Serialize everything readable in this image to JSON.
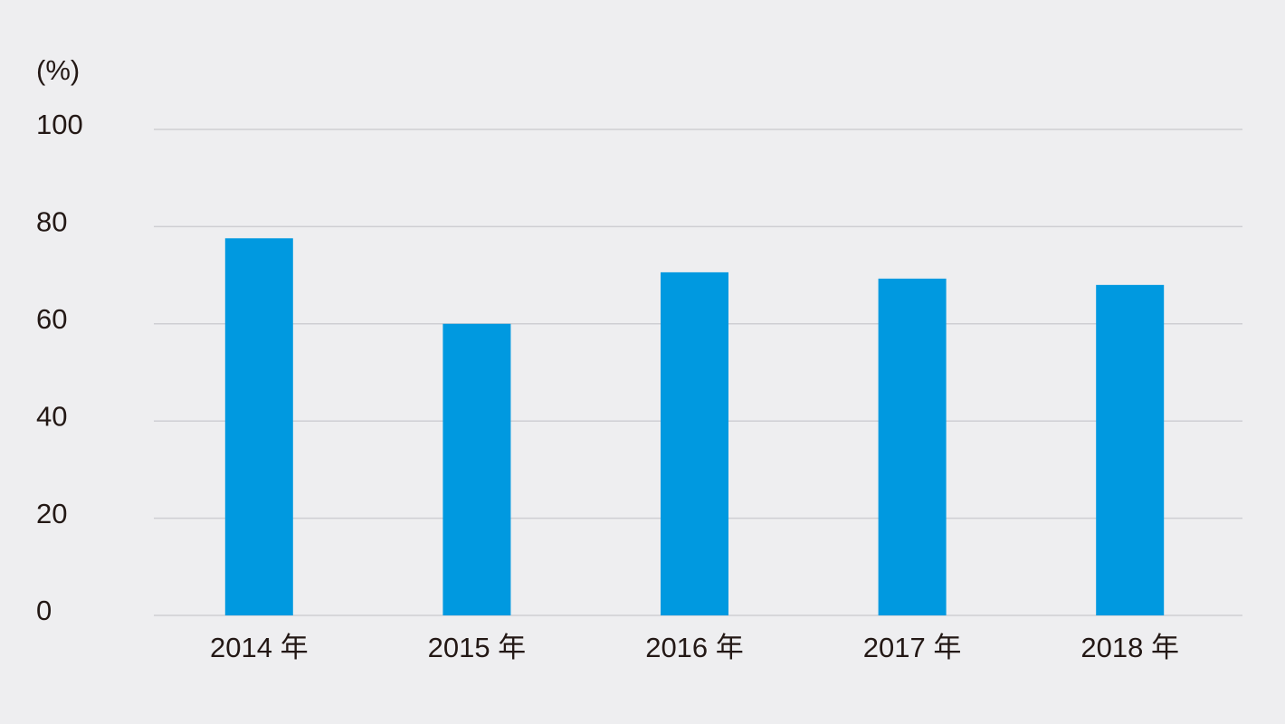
{
  "chart_data": {
    "type": "bar",
    "y_label": "(%)",
    "categories": [
      "2014 年",
      "2015 年",
      "2016 年",
      "2017 年",
      "2018 年"
    ],
    "values": [
      77.6,
      60,
      70.6,
      69.3,
      68
    ],
    "color": "#0099e0",
    "ylim": [
      0,
      100
    ],
    "yticks": [
      0,
      20,
      40,
      60,
      80,
      100
    ],
    "grid": true
  }
}
